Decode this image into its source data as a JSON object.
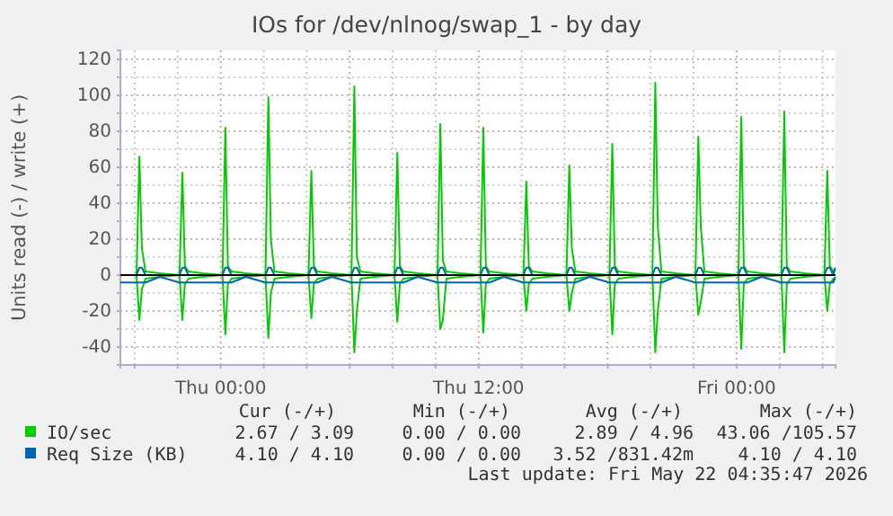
{
  "chart_data": {
    "type": "line",
    "title": "IOs for /dev/nlnog/swap_1 - by day",
    "ylabel": "Units read (-) / write (+)",
    "x": [
      "2026-05-20T19:20",
      "2026-05-20T20:05",
      "2026-05-20T20:13",
      "2026-05-20T20:20",
      "2026-05-20T20:30",
      "2026-05-20T21:10",
      "2026-05-20T22:05",
      "2026-05-20T22:13",
      "2026-05-20T22:20",
      "2026-05-20T22:30",
      "2026-05-20T23:10",
      "2026-05-21T00:05",
      "2026-05-21T00:13",
      "2026-05-21T00:20",
      "2026-05-21T00:30",
      "2026-05-21T01:10",
      "2026-05-21T02:05",
      "2026-05-21T02:13",
      "2026-05-21T02:20",
      "2026-05-21T02:30",
      "2026-05-21T03:10",
      "2026-05-21T04:05",
      "2026-05-21T04:13",
      "2026-05-21T04:20",
      "2026-05-21T04:30",
      "2026-05-21T05:10",
      "2026-05-21T06:05",
      "2026-05-21T06:13",
      "2026-05-21T06:20",
      "2026-05-21T06:30",
      "2026-05-21T07:10",
      "2026-05-21T08:05",
      "2026-05-21T08:13",
      "2026-05-21T08:20",
      "2026-05-21T08:30",
      "2026-05-21T09:10",
      "2026-05-21T10:05",
      "2026-05-21T10:13",
      "2026-05-21T10:20",
      "2026-05-21T10:30",
      "2026-05-21T11:10",
      "2026-05-21T12:05",
      "2026-05-21T12:13",
      "2026-05-21T12:20",
      "2026-05-21T12:30",
      "2026-05-21T13:10",
      "2026-05-21T14:05",
      "2026-05-21T14:13",
      "2026-05-21T14:20",
      "2026-05-21T14:30",
      "2026-05-21T15:10",
      "2026-05-21T16:05",
      "2026-05-21T16:13",
      "2026-05-21T16:20",
      "2026-05-21T16:30",
      "2026-05-21T17:10",
      "2026-05-21T18:05",
      "2026-05-21T18:13",
      "2026-05-21T18:20",
      "2026-05-21T18:30",
      "2026-05-21T19:10",
      "2026-05-21T20:05",
      "2026-05-21T20:13",
      "2026-05-21T20:20",
      "2026-05-21T20:30",
      "2026-05-21T21:10",
      "2026-05-21T22:05",
      "2026-05-21T22:13",
      "2026-05-21T22:20",
      "2026-05-21T22:30",
      "2026-05-21T23:10",
      "2026-05-22T00:05",
      "2026-05-22T00:13",
      "2026-05-22T00:20",
      "2026-05-22T00:30",
      "2026-05-22T01:10",
      "2026-05-22T02:05",
      "2026-05-22T02:13",
      "2026-05-22T02:20",
      "2026-05-22T02:30",
      "2026-05-22T03:10",
      "2026-05-22T04:05",
      "2026-05-22T04:13",
      "2026-05-22T04:20",
      "2026-05-22T04:30",
      "2026-05-22T04:35"
    ],
    "series": [
      {
        "name": "IO/sec",
        "color": "#00cc00",
        "values": [
          0,
          0,
          66,
          15,
          2,
          1,
          0,
          57,
          5,
          2,
          1,
          0,
          82,
          5,
          2,
          1,
          0,
          99,
          20,
          2,
          1,
          0,
          58,
          5,
          2,
          1,
          0,
          105,
          10,
          2,
          1,
          0,
          68,
          5,
          2,
          1,
          0,
          84,
          8,
          2,
          1,
          0,
          82,
          5,
          2,
          1,
          0,
          52,
          5,
          2,
          1,
          0,
          61,
          15,
          2,
          1,
          0,
          73,
          5,
          2,
          1,
          0,
          107,
          27,
          2,
          1,
          0,
          77,
          27,
          2,
          1,
          0,
          88,
          5,
          2,
          1,
          0,
          91,
          5,
          2,
          1,
          0,
          58,
          5,
          2,
          3
        ]
      },
      {
        "color": "#00cc00",
        "values": [
          0,
          0,
          -25,
          -8,
          -2,
          -1,
          0,
          -25,
          -5,
          -2,
          -1,
          0,
          -33,
          -5,
          -2,
          -1,
          0,
          -35,
          -10,
          -2,
          -1,
          0,
          -24,
          -5,
          -2,
          -1,
          0,
          -43,
          -20,
          -2,
          -1,
          0,
          -26,
          -5,
          -2,
          -1,
          0,
          -30,
          -25,
          -2,
          -1,
          0,
          -32,
          -5,
          -2,
          -1,
          0,
          -20,
          -5,
          -2,
          -1,
          0,
          -20,
          -10,
          -2,
          -1,
          0,
          -33,
          -5,
          -2,
          -1,
          0,
          -43,
          -20,
          -2,
          -1,
          0,
          -22,
          -15,
          -2,
          -1,
          0,
          -41,
          -5,
          -2,
          -1,
          0,
          -43,
          -5,
          -2,
          -1,
          0,
          -20,
          -5,
          -2,
          -3
        ]
      },
      {
        "name": "Req Size (KB)",
        "color": "#0066b3",
        "values": [
          0,
          0,
          4.1,
          4.1,
          0,
          0,
          0,
          4.1,
          4.1,
          0,
          0,
          0,
          4.1,
          4.1,
          0,
          0,
          0,
          4.1,
          4.1,
          0,
          0,
          0,
          4.1,
          4.1,
          0,
          0,
          0,
          4.1,
          4.1,
          0,
          0,
          0,
          4.1,
          4.1,
          0,
          0,
          0,
          4.1,
          4.1,
          0,
          0,
          0,
          4.1,
          4.1,
          0,
          0,
          0,
          4.1,
          4.1,
          0,
          0,
          0,
          4.1,
          4.1,
          0,
          0,
          0,
          4.1,
          4.1,
          0,
          0,
          0,
          4.1,
          4.1,
          0,
          0,
          0,
          4.1,
          4.1,
          0,
          0,
          0,
          4.1,
          4.1,
          0,
          0,
          0,
          4.1,
          4.1,
          0,
          0,
          0,
          4.1,
          4.1,
          0,
          4.1
        ]
      },
      {
        "color": "#0066b3",
        "values": [
          -4.1,
          -4.1,
          -4.1,
          -4.1,
          -4.1,
          -1,
          -4.1,
          -4.1,
          -4.1,
          -4.1,
          -4.1,
          -4.1,
          -4.1,
          -4.1,
          -4.1,
          -1,
          -4.1,
          -4.1,
          -4.1,
          -4.1,
          -4.1,
          -4.1,
          -4.1,
          -4.1,
          -4.1,
          -1,
          -4.1,
          -4.1,
          -4.1,
          -4.1,
          -4.1,
          -4.1,
          -4.1,
          -4.1,
          -4.1,
          -1,
          -4.1,
          -4.1,
          -4.1,
          -4.1,
          -4.1,
          -4.1,
          -4.1,
          -4.1,
          -4.1,
          -1,
          -4.1,
          -4.1,
          -4.1,
          -4.1,
          -4.1,
          -4.1,
          -4.1,
          -4.1,
          -4.1,
          -1,
          -4.1,
          -4.1,
          -4.1,
          -4.1,
          -4.1,
          -4.1,
          -4.1,
          -4.1,
          -4.1,
          -1,
          -4.1,
          -4.1,
          -4.1,
          -4.1,
          -4.1,
          -4.1,
          -4.1,
          -4.1,
          -4.1,
          -1,
          -4.1,
          -4.1,
          -4.1,
          -4.1,
          -4.1,
          -4.1,
          -4.1,
          -4.1,
          -4.1,
          -1
        ]
      }
    ],
    "xlim": [
      "2026-05-20T19:20",
      "2026-05-22T04:36"
    ],
    "xticks": [
      {
        "value": "2026-05-20T20:00",
        "label": null
      },
      {
        "value": "2026-05-20T22:00",
        "label": null
      },
      {
        "value": "2026-05-21T00:00",
        "label": "Thu 00:00"
      },
      {
        "value": "2026-05-21T02:00",
        "label": null
      },
      {
        "value": "2026-05-21T04:00",
        "label": null
      },
      {
        "value": "2026-05-21T06:00",
        "label": null
      },
      {
        "value": "2026-05-21T08:00",
        "label": null
      },
      {
        "value": "2026-05-21T10:00",
        "label": null
      },
      {
        "value": "2026-05-21T12:00",
        "label": "Thu 12:00"
      },
      {
        "value": "2026-05-21T14:00",
        "label": null
      },
      {
        "value": "2026-05-21T16:00",
        "label": null
      },
      {
        "value": "2026-05-21T18:00",
        "label": null
      },
      {
        "value": "2026-05-21T20:00",
        "label": null
      },
      {
        "value": "2026-05-21T22:00",
        "label": null
      },
      {
        "value": "2026-05-22T00:00",
        "label": "Fri 00:00"
      },
      {
        "value": "2026-05-22T02:00",
        "label": null
      },
      {
        "value": "2026-05-22T04:00",
        "label": null
      }
    ],
    "ylim": [
      -50,
      125
    ],
    "yticks": [
      -40,
      {
        "value": -30,
        "label": null
      },
      -20,
      {
        "value": -10,
        "label": null
      },
      0,
      {
        "value": 10,
        "label": null
      },
      20,
      {
        "value": 30,
        "label": null
      },
      40,
      {
        "value": 50,
        "label": null
      },
      60,
      {
        "value": 70,
        "label": null
      },
      80,
      {
        "value": 90,
        "label": null
      },
      100,
      {
        "value": 110,
        "label": null
      },
      120
    ],
    "grid": true,
    "legend": "bottom",
    "marker": "none",
    "line_style": "solid",
    "ref_lines": [
      {
        "axis": "y",
        "value": 0,
        "color": "#000000"
      }
    ],
    "annotations": [
      "Cur (-/+)",
      "Min (-/+)",
      "Avg (-/+)",
      "Max (-/+)",
      "2.67 / 3.09",
      "0.00 / 0.00",
      "2.89 / 4.96",
      "43.06 /105.57",
      "4.10 / 4.10",
      "0.00 / 0.00",
      "3.52 /831.42m",
      "4.10 / 4.10",
      "Last update: Fri May 22 04:35:47 2026"
    ]
  }
}
